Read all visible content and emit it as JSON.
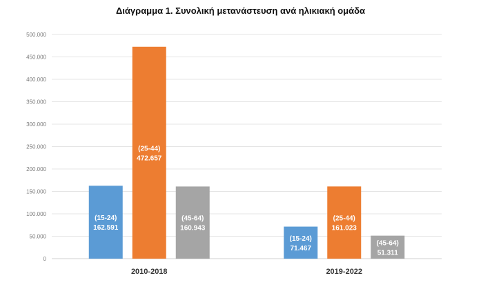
{
  "chart_data": {
    "type": "bar",
    "title": "Διάγραμμα 1. Συνολική μετανάστευση ανά ηλικιακή ομάδα",
    "xlabel": "",
    "ylabel": "",
    "categories": [
      "2010-2018",
      "2019-2022"
    ],
    "series": [
      {
        "name": "(15-24)",
        "values": [
          162591,
          71467
        ],
        "value_labels": [
          "162.591",
          "71.467"
        ],
        "color": "#5b9bd5"
      },
      {
        "name": "(25-44)",
        "values": [
          472657,
          161023
        ],
        "value_labels": [
          "472.657",
          "161.023"
        ],
        "color": "#ed7d31"
      },
      {
        "name": "(45-64)",
        "values": [
          160943,
          51311
        ],
        "value_labels": [
          "160.943",
          "51.311"
        ],
        "color": "#a5a5a5"
      }
    ],
    "ylim": [
      0,
      500000
    ],
    "yticks": [
      0,
      50000,
      100000,
      150000,
      200000,
      250000,
      300000,
      350000,
      400000,
      450000,
      500000
    ],
    "ytick_labels": [
      "0",
      "50.000",
      "100.000",
      "150.000",
      "200.000",
      "250.000",
      "300.000",
      "350.000",
      "400.000",
      "450.000",
      "500.000"
    ],
    "grid": true,
    "legend": "none"
  }
}
